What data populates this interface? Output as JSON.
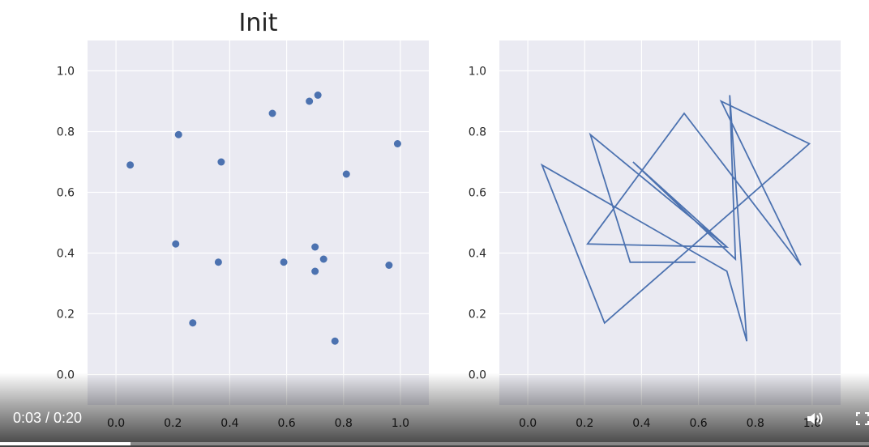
{
  "chart_data": [
    {
      "type": "scatter",
      "title": "Init",
      "xlabel": "",
      "ylabel": "",
      "xlim": [
        -0.1,
        1.1
      ],
      "ylim": [
        -0.1,
        1.1
      ],
      "xticks": [
        "0.0",
        "0.2",
        "0.4",
        "0.6",
        "0.8",
        "1.0"
      ],
      "yticks": [
        "0.0",
        "0.2",
        "0.4",
        "0.6",
        "0.8",
        "1.0"
      ],
      "grid": true,
      "color": "#4c72b0",
      "points": [
        {
          "x": 0.05,
          "y": 0.69
        },
        {
          "x": 0.22,
          "y": 0.79
        },
        {
          "x": 0.37,
          "y": 0.7
        },
        {
          "x": 0.55,
          "y": 0.86
        },
        {
          "x": 0.68,
          "y": 0.9
        },
        {
          "x": 0.71,
          "y": 0.92
        },
        {
          "x": 0.99,
          "y": 0.76
        },
        {
          "x": 0.81,
          "y": 0.66
        },
        {
          "x": 0.21,
          "y": 0.43
        },
        {
          "x": 0.36,
          "y": 0.37
        },
        {
          "x": 0.59,
          "y": 0.37
        },
        {
          "x": 0.7,
          "y": 0.42
        },
        {
          "x": 0.73,
          "y": 0.38
        },
        {
          "x": 0.7,
          "y": 0.34
        },
        {
          "x": 0.96,
          "y": 0.36
        },
        {
          "x": 0.27,
          "y": 0.17
        },
        {
          "x": 0.77,
          "y": 0.11
        }
      ]
    },
    {
      "type": "line",
      "title": "",
      "xlabel": "",
      "ylabel": "",
      "xlim": [
        -0.1,
        1.1
      ],
      "ylim": [
        -0.1,
        1.1
      ],
      "xticks": [
        "0.0",
        "0.2",
        "0.4",
        "0.6",
        "0.8",
        "1.0"
      ],
      "yticks": [
        "0.0",
        "0.2",
        "0.4",
        "0.6",
        "0.8",
        "1.0"
      ],
      "grid": true,
      "color": "#4c72b0",
      "points": [
        {
          "x": 0.59,
          "y": 0.37
        },
        {
          "x": 0.36,
          "y": 0.37
        },
        {
          "x": 0.22,
          "y": 0.79
        },
        {
          "x": 0.7,
          "y": 0.42
        },
        {
          "x": 0.21,
          "y": 0.43
        },
        {
          "x": 0.55,
          "y": 0.86
        },
        {
          "x": 0.96,
          "y": 0.36
        },
        {
          "x": 0.68,
          "y": 0.9
        },
        {
          "x": 0.99,
          "y": 0.76
        },
        {
          "x": 0.27,
          "y": 0.17
        },
        {
          "x": 0.05,
          "y": 0.69
        },
        {
          "x": 0.7,
          "y": 0.34
        },
        {
          "x": 0.77,
          "y": 0.11
        },
        {
          "x": 0.71,
          "y": 0.92
        },
        {
          "x": 0.73,
          "y": 0.38
        },
        {
          "x": 0.37,
          "y": 0.7
        },
        {
          "x": 0.7,
          "y": 0.42
        }
      ]
    }
  ],
  "player": {
    "time": "0:03 / 0:20",
    "progress": 0.15,
    "volume_icon": "volume-icon",
    "fullscreen_icon": "fullscreen-icon"
  }
}
